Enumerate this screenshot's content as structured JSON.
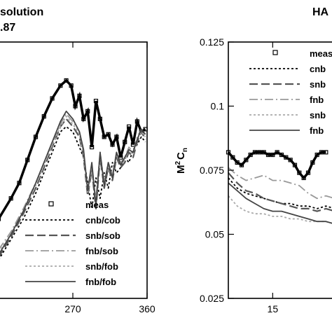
{
  "chart_data": [
    {
      "type": "line",
      "title": [
        "solution",
        ".87"
      ],
      "x_ticks": [
        "270",
        "360"
      ],
      "y_ticks": [],
      "xlim": [
        180,
        360
      ],
      "ylim": [
        0.025,
        0.125
      ],
      "legend": {
        "position": "bottom-right"
      },
      "series": [
        {
          "name": "meas",
          "style": "markers",
          "color": "#000000",
          "x": [
            180,
            195,
            205,
            215,
            225,
            235,
            245,
            255,
            262,
            268,
            273,
            278,
            283,
            288,
            293,
            298,
            303,
            308,
            313,
            318,
            323,
            328,
            333,
            338,
            343,
            348,
            353,
            358
          ],
          "y": [
            0.056,
            0.064,
            0.07,
            0.079,
            0.088,
            0.096,
            0.103,
            0.108,
            0.11,
            0.108,
            0.1,
            0.104,
            0.095,
            0.098,
            0.084,
            0.102,
            0.095,
            0.088,
            0.089,
            0.085,
            0.088,
            0.08,
            0.086,
            0.092,
            0.085,
            0.094,
            0.09,
            0.091
          ]
        },
        {
          "name": "cnb/cob",
          "style": "dotted",
          "color": "#000000",
          "x": [
            180,
            195,
            210,
            225,
            240,
            255,
            262,
            270,
            278,
            283,
            288,
            293,
            298,
            303,
            308,
            313,
            318,
            323,
            328,
            333,
            338,
            343,
            348,
            353,
            358
          ],
          "y": [
            0.04,
            0.048,
            0.056,
            0.066,
            0.078,
            0.09,
            0.092,
            0.09,
            0.084,
            0.08,
            0.07,
            0.06,
            0.072,
            0.064,
            0.074,
            0.068,
            0.078,
            0.074,
            0.076,
            0.08,
            0.078,
            0.083,
            0.085,
            0.088,
            0.086
          ]
        },
        {
          "name": "snb/sob",
          "style": "long-dash",
          "color": "#555555",
          "x": [
            180,
            195,
            210,
            225,
            240,
            255,
            262,
            270,
            278,
            283,
            288,
            293,
            298,
            303,
            308,
            313,
            318,
            323,
            328,
            333,
            338,
            343,
            348,
            353,
            358
          ],
          "y": [
            0.041,
            0.049,
            0.058,
            0.068,
            0.08,
            0.092,
            0.095,
            0.092,
            0.088,
            0.08,
            0.065,
            0.075,
            0.06,
            0.08,
            0.068,
            0.076,
            0.071,
            0.08,
            0.076,
            0.078,
            0.082,
            0.08,
            0.086,
            0.09,
            0.087
          ]
        },
        {
          "name": "fnb/sob",
          "style": "dash-dot",
          "color": "#999999",
          "x": [
            180,
            195,
            210,
            225,
            240,
            255,
            262,
            270,
            278,
            283,
            288,
            293,
            298,
            303,
            308,
            313,
            318,
            323,
            328,
            333,
            338,
            343,
            348,
            353,
            358
          ],
          "y": [
            0.044,
            0.051,
            0.06,
            0.07,
            0.082,
            0.093,
            0.097,
            0.094,
            0.09,
            0.082,
            0.068,
            0.074,
            0.064,
            0.082,
            0.07,
            0.078,
            0.073,
            0.082,
            0.078,
            0.08,
            0.084,
            0.082,
            0.088,
            0.091,
            0.088
          ]
        },
        {
          "name": "snb/fob",
          "style": "dotted",
          "color": "#aaaaaa",
          "x": [
            180,
            195,
            210,
            225,
            240,
            255,
            262,
            270,
            278,
            283,
            288,
            293,
            298,
            303,
            308,
            313,
            318,
            323,
            328,
            333,
            338,
            343,
            348,
            353,
            358
          ],
          "y": [
            0.043,
            0.05,
            0.059,
            0.069,
            0.081,
            0.092,
            0.096,
            0.093,
            0.089,
            0.081,
            0.066,
            0.077,
            0.062,
            0.081,
            0.069,
            0.077,
            0.072,
            0.081,
            0.077,
            0.079,
            0.083,
            0.081,
            0.087,
            0.09,
            0.088
          ]
        },
        {
          "name": "fnb/fob",
          "style": "solid",
          "color": "#444444",
          "x": [
            180,
            195,
            210,
            225,
            240,
            255,
            262,
            270,
            278,
            283,
            288,
            293,
            298,
            303,
            308,
            313,
            318,
            323,
            328,
            333,
            338,
            343,
            348,
            353,
            358
          ],
          "y": [
            0.042,
            0.05,
            0.059,
            0.07,
            0.082,
            0.094,
            0.098,
            0.095,
            0.09,
            0.083,
            0.067,
            0.078,
            0.061,
            0.082,
            0.069,
            0.078,
            0.072,
            0.082,
            0.077,
            0.08,
            0.083,
            0.082,
            0.087,
            0.091,
            0.089
          ]
        }
      ]
    },
    {
      "type": "line",
      "title": [
        "HA"
      ],
      "ylabel_base": "M",
      "ylabel_sup": "2",
      "ylabel_main": "C",
      "ylabel_sub": "n",
      "x_ticks": [
        "15"
      ],
      "y_ticks": [
        "0.125",
        "0.1",
        "0.075",
        "0.05",
        "0.025"
      ],
      "xlim": [
        10,
        22
      ],
      "ylim": [
        0.025,
        0.125
      ],
      "legend": {
        "position": "top-right"
      },
      "series": [
        {
          "name": "meas",
          "style": "markers",
          "color": "#000000",
          "x": [
            10,
            10.5,
            11,
            11.5,
            12,
            12.5,
            13,
            13.5,
            14,
            14.5,
            15,
            15.5,
            16,
            16.5,
            17,
            17.5,
            18,
            18.5,
            19,
            19.5,
            20,
            20.5,
            21
          ],
          "y": [
            0.082,
            0.08,
            0.078,
            0.077,
            0.079,
            0.081,
            0.082,
            0.082,
            0.082,
            0.081,
            0.081,
            0.082,
            0.081,
            0.08,
            0.079,
            0.077,
            0.074,
            0.072,
            0.074,
            0.078,
            0.081,
            0.082,
            0.082
          ]
        },
        {
          "name": "cnb",
          "style": "dotted",
          "color": "#000000",
          "x": [
            10,
            11,
            12,
            13,
            14,
            15,
            16,
            17,
            18,
            19,
            20,
            21,
            22
          ],
          "y": [
            0.072,
            0.068,
            0.066,
            0.065,
            0.064,
            0.063,
            0.062,
            0.062,
            0.061,
            0.061,
            0.06,
            0.061,
            0.06
          ]
        },
        {
          "name": "snb",
          "style": "long-dash",
          "color": "#555555",
          "x": [
            10,
            11,
            12,
            13,
            14,
            15,
            16,
            17,
            18,
            19,
            20,
            21,
            22
          ],
          "y": [
            0.074,
            0.07,
            0.067,
            0.066,
            0.064,
            0.063,
            0.062,
            0.061,
            0.06,
            0.06,
            0.059,
            0.06,
            0.059
          ]
        },
        {
          "name": "fnb",
          "style": "dash-dot",
          "color": "#999999",
          "x": [
            10,
            11,
            12,
            13,
            14,
            15,
            16,
            17,
            18,
            19,
            20,
            21,
            22
          ],
          "y": [
            0.076,
            0.073,
            0.071,
            0.072,
            0.073,
            0.071,
            0.071,
            0.07,
            0.069,
            0.066,
            0.064,
            0.065,
            0.064
          ]
        },
        {
          "name": "snb",
          "style": "dotted",
          "color": "#aaaaaa",
          "x": [
            10,
            11,
            12,
            13,
            14,
            15,
            16,
            17,
            18,
            19,
            20,
            21,
            22
          ],
          "y": [
            0.065,
            0.061,
            0.059,
            0.058,
            0.058,
            0.057,
            0.057,
            0.056,
            0.056,
            0.055,
            0.055,
            0.055,
            0.054
          ]
        },
        {
          "name": "fnb",
          "style": "solid",
          "color": "#444444",
          "x": [
            10,
            11,
            12,
            13,
            14,
            15,
            16,
            17,
            18,
            19,
            20,
            21,
            22
          ],
          "y": [
            0.07,
            0.067,
            0.064,
            0.062,
            0.06,
            0.059,
            0.059,
            0.058,
            0.057,
            0.056,
            0.055,
            0.055,
            0.054
          ]
        }
      ]
    }
  ]
}
